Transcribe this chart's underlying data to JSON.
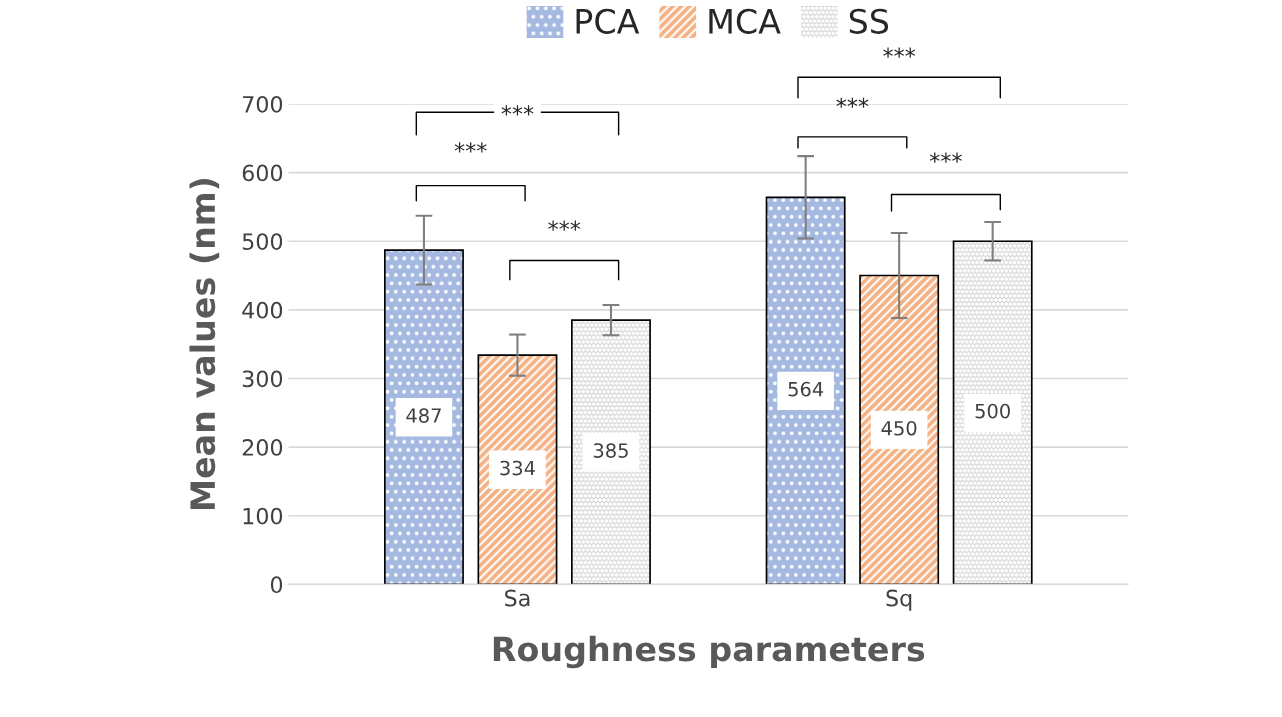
{
  "chart_data": {
    "type": "bar",
    "xlabel": "Roughness parameters",
    "ylabel": "Mean values (nm)",
    "categories": [
      "Sa",
      "Sq"
    ],
    "series": [
      {
        "name": "PCA",
        "color": "#a4b8e0",
        "values": [
          487,
          564
        ],
        "errors": [
          50,
          60
        ]
      },
      {
        "name": "MCA",
        "color": "#f4b183",
        "values": [
          334,
          450
        ],
        "errors": [
          30,
          62
        ]
      },
      {
        "name": "SS",
        "color": "#d0d0d0",
        "values": [
          385,
          500
        ],
        "errors": [
          22,
          28
        ]
      }
    ],
    "ylim": [
      0,
      700
    ],
    "yticks": [
      0,
      100,
      200,
      300,
      400,
      500,
      600,
      700
    ],
    "grid": "y",
    "legend": "top",
    "data_labels": true,
    "annotations": [
      "***",
      "***",
      "***",
      "***",
      "***",
      "***"
    ]
  }
}
